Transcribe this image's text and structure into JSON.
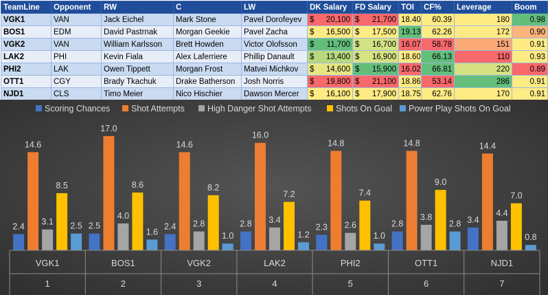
{
  "table": {
    "headers": [
      "TeamLine",
      "Opponent",
      "RW",
      "C",
      "LW",
      "DK Salary",
      "FD Salary",
      "TOI",
      "CF%",
      "Leverage",
      "Boom"
    ],
    "currency_symbol": "$",
    "rows": [
      {
        "team": "VGK1",
        "opp": "VAN",
        "rw": "Jack Eichel",
        "c": "Mark Stone",
        "lw": "Pavel Dorofeyev",
        "dk": "20,100",
        "fd": "21,700",
        "toi": "18.40",
        "cf": "60.39",
        "lev": "180",
        "boom": "0.98",
        "colors": {
          "dk": "#f8696b",
          "fd": "#f8696b",
          "toi": "#ffeb84",
          "cf": "#ffeb84",
          "lev": "#ffeb84",
          "boom": "#63be7b"
        }
      },
      {
        "team": "BOS1",
        "opp": "EDM",
        "rw": "David Pastrnak",
        "c": "Morgan Geekie",
        "lw": "Pavel Zacha",
        "dk": "16,500",
        "fd": "17,500",
        "toi": "19.13",
        "cf": "62.26",
        "lev": "172",
        "boom": "0.90",
        "colors": {
          "dk": "#ffeb84",
          "fd": "#ffeb84",
          "toi": "#63be7b",
          "cf": "#ffeb84",
          "lev": "#ffeb84",
          "boom": "#fbb479"
        }
      },
      {
        "team": "VGK2",
        "opp": "VAN",
        "rw": "William Karlsson",
        "c": "Brett Howden",
        "lw": "Victor Olofsson",
        "dk": "11,700",
        "fd": "16,700",
        "toi": "16.07",
        "cf": "58.78",
        "lev": "151",
        "boom": "0.91",
        "colors": {
          "dk": "#63be7b",
          "fd": "#d2e183",
          "toi": "#f8696b",
          "cf": "#f8696b",
          "lev": "#fbaa77",
          "boom": "#ffeb84"
        }
      },
      {
        "team": "LAK2",
        "opp": "PHI",
        "rw": "Kevin Fiala",
        "c": "Alex Laferriere",
        "lw": "Phillip Danault",
        "dk": "13,400",
        "fd": "16,900",
        "toi": "18.60",
        "cf": "66.13",
        "lev": "110",
        "boom": "0.93",
        "colors": {
          "dk": "#b6d97f",
          "fd": "#d7e283",
          "toi": "#ffeb84",
          "cf": "#63be7b",
          "lev": "#f8696b",
          "boom": "#ffeb84"
        }
      },
      {
        "team": "PHI2",
        "opp": "LAK",
        "rw": "Owen Tippett",
        "c": "Morgan Frost",
        "lw": "Matvei Michkov",
        "dk": "14,600",
        "fd": "15,900",
        "toi": "16.02",
        "cf": "66.81",
        "lev": "220",
        "boom": "0.89",
        "colors": {
          "dk": "#e6e583",
          "fd": "#63be7b",
          "toi": "#f8696b",
          "cf": "#63be7b",
          "lev": "#d5e283",
          "boom": "#f8696b"
        }
      },
      {
        "team": "OTT1",
        "opp": "CGY",
        "rw": "Brady Tkachuk",
        "c": "Drake Batherson",
        "lw": "Josh Norris",
        "dk": "19,800",
        "fd": "21,100",
        "toi": "18.86",
        "cf": "53.14",
        "lev": "286",
        "boom": "0.91",
        "colors": {
          "dk": "#f8696b",
          "fd": "#f8696b",
          "toi": "#ffeb84",
          "cf": "#f8696b",
          "lev": "#63be7b",
          "boom": "#ffeb84"
        }
      },
      {
        "team": "NJD1",
        "opp": "CLS",
        "rw": "Timo Meier",
        "c": "Nico Hischier",
        "lw": "Dawson Mercer",
        "dk": "16,100",
        "fd": "17,900",
        "toi": "18.75",
        "cf": "62.76",
        "lev": "170",
        "boom": "0.91",
        "colors": {
          "dk": "#ffeb84",
          "fd": "#ffeb84",
          "toi": "#ffeb84",
          "cf": "#ffeb84",
          "lev": "#ffeb84",
          "boom": "#ffeb84"
        }
      }
    ]
  },
  "chart_data": {
    "type": "bar",
    "categories": [
      "VGK1",
      "BOS1",
      "VGK2",
      "LAK2",
      "PHI2",
      "OTT1",
      "NJD1"
    ],
    "category_numbers": [
      "1",
      "2",
      "3",
      "4",
      "5",
      "6",
      "7"
    ],
    "series": [
      {
        "name": "Scoring Chances",
        "color": "#4472c4",
        "values": [
          2.4,
          2.5,
          2.4,
          2.8,
          2.3,
          2.8,
          3.4
        ]
      },
      {
        "name": "Shot Attempts",
        "color": "#ed7d31",
        "values": [
          14.6,
          17.0,
          14.6,
          16.0,
          14.8,
          14.8,
          14.4
        ]
      },
      {
        "name": "High Danger Shot Attempts",
        "color": "#a5a5a5",
        "values": [
          3.1,
          4.0,
          2.8,
          3.4,
          2.6,
          3.8,
          4.4
        ]
      },
      {
        "name": "Shots On Goal",
        "color": "#ffc000",
        "values": [
          8.5,
          8.6,
          8.2,
          7.2,
          7.4,
          9.0,
          7.0
        ]
      },
      {
        "name": "Power Play Shots On Goal",
        "color": "#5b9bd5",
        "values": [
          2.5,
          1.6,
          1.0,
          1.2,
          1.0,
          2.8,
          0.8
        ]
      }
    ],
    "ylim": [
      0,
      17.5
    ],
    "grid": false,
    "legend_position": "top",
    "title": "",
    "xlabel": "",
    "ylabel": ""
  }
}
